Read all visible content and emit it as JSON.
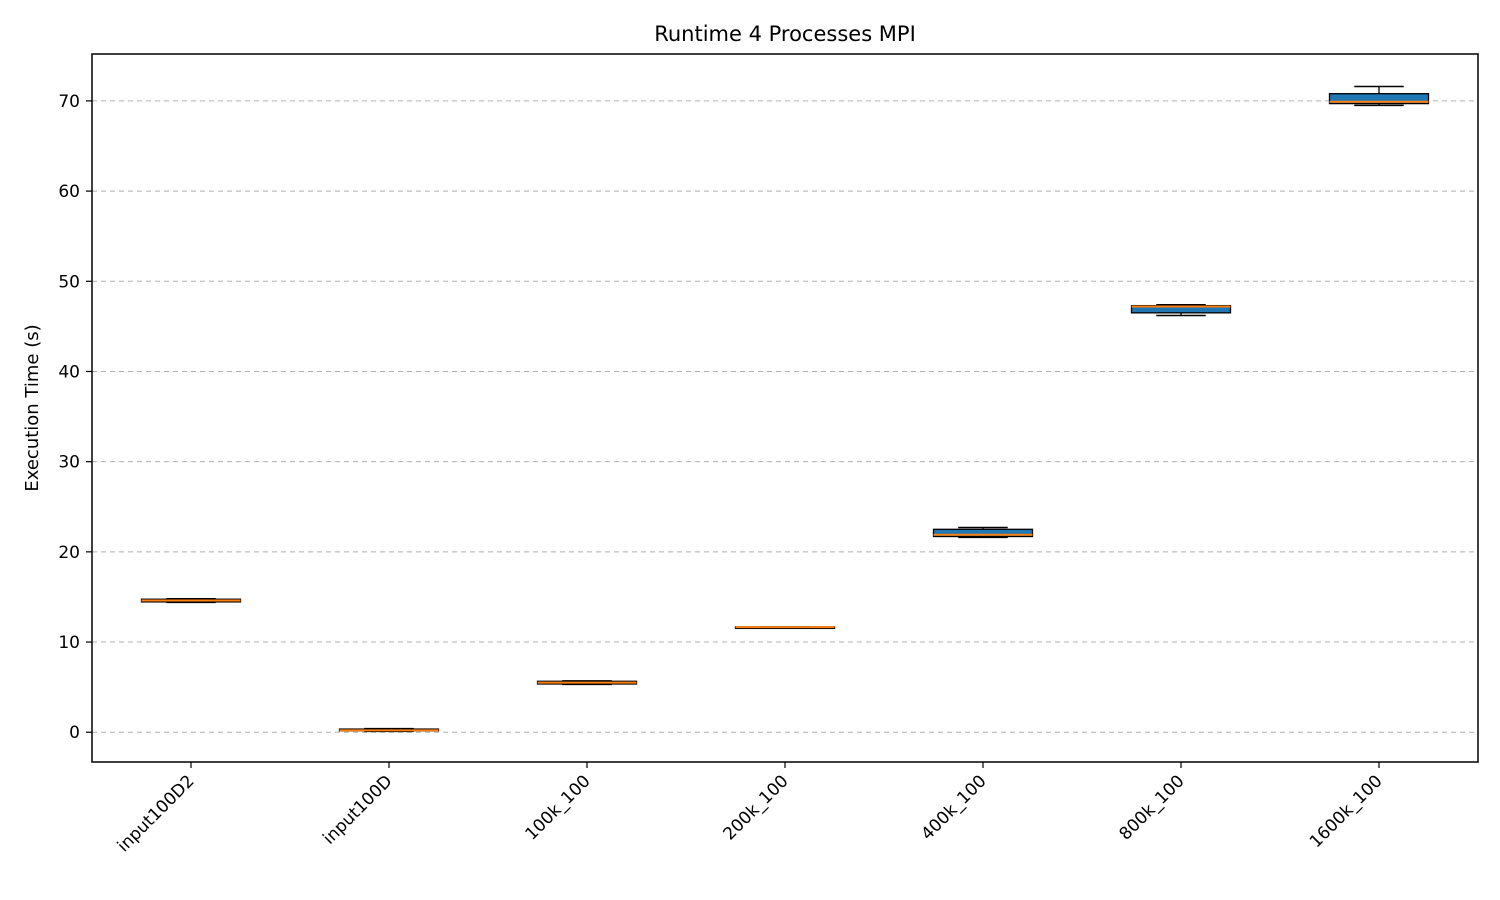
{
  "chart_data": {
    "type": "box",
    "title": "Runtime 4 Processes MPI",
    "xlabel": "",
    "ylabel": "Execution Time (s)",
    "ylim": [
      -3.3,
      75.2
    ],
    "yticks": [
      0,
      10,
      20,
      30,
      40,
      50,
      60,
      70
    ],
    "grid": "y-dashed",
    "colors": {
      "box_fill": "#1f77b4",
      "median": "#ff7f0e",
      "grid": "#b0b0b0",
      "outline": "#000000"
    },
    "categories": [
      "input100D2",
      "input100D",
      "100k_100",
      "200k_100",
      "400k_100",
      "800k_100",
      "1600k_100"
    ],
    "boxes": [
      {
        "category": "input100D2",
        "whislo": 14.4,
        "q1": 14.45,
        "med": 14.6,
        "q3": 14.75,
        "whishi": 14.8
      },
      {
        "category": "input100D",
        "whislo": 0.1,
        "q1": 0.15,
        "med": 0.2,
        "q3": 0.35,
        "whishi": 0.4
      },
      {
        "category": "100k_100",
        "whislo": 5.3,
        "q1": 5.35,
        "med": 5.5,
        "q3": 5.65,
        "whishi": 5.7
      },
      {
        "category": "200k_100",
        "whislo": 11.6,
        "q1": 11.62,
        "med": 11.65,
        "q3": 11.68,
        "whishi": 11.7
      },
      {
        "category": "400k_100",
        "whislo": 21.6,
        "q1": 21.7,
        "med": 21.9,
        "q3": 22.5,
        "whishi": 22.7
      },
      {
        "category": "800k_100",
        "whislo": 46.2,
        "q1": 46.5,
        "med": 47.2,
        "q3": 47.3,
        "whishi": 47.4
      },
      {
        "category": "1600k_100",
        "whislo": 69.5,
        "q1": 69.7,
        "med": 69.9,
        "q3": 70.8,
        "whishi": 71.6
      }
    ]
  }
}
